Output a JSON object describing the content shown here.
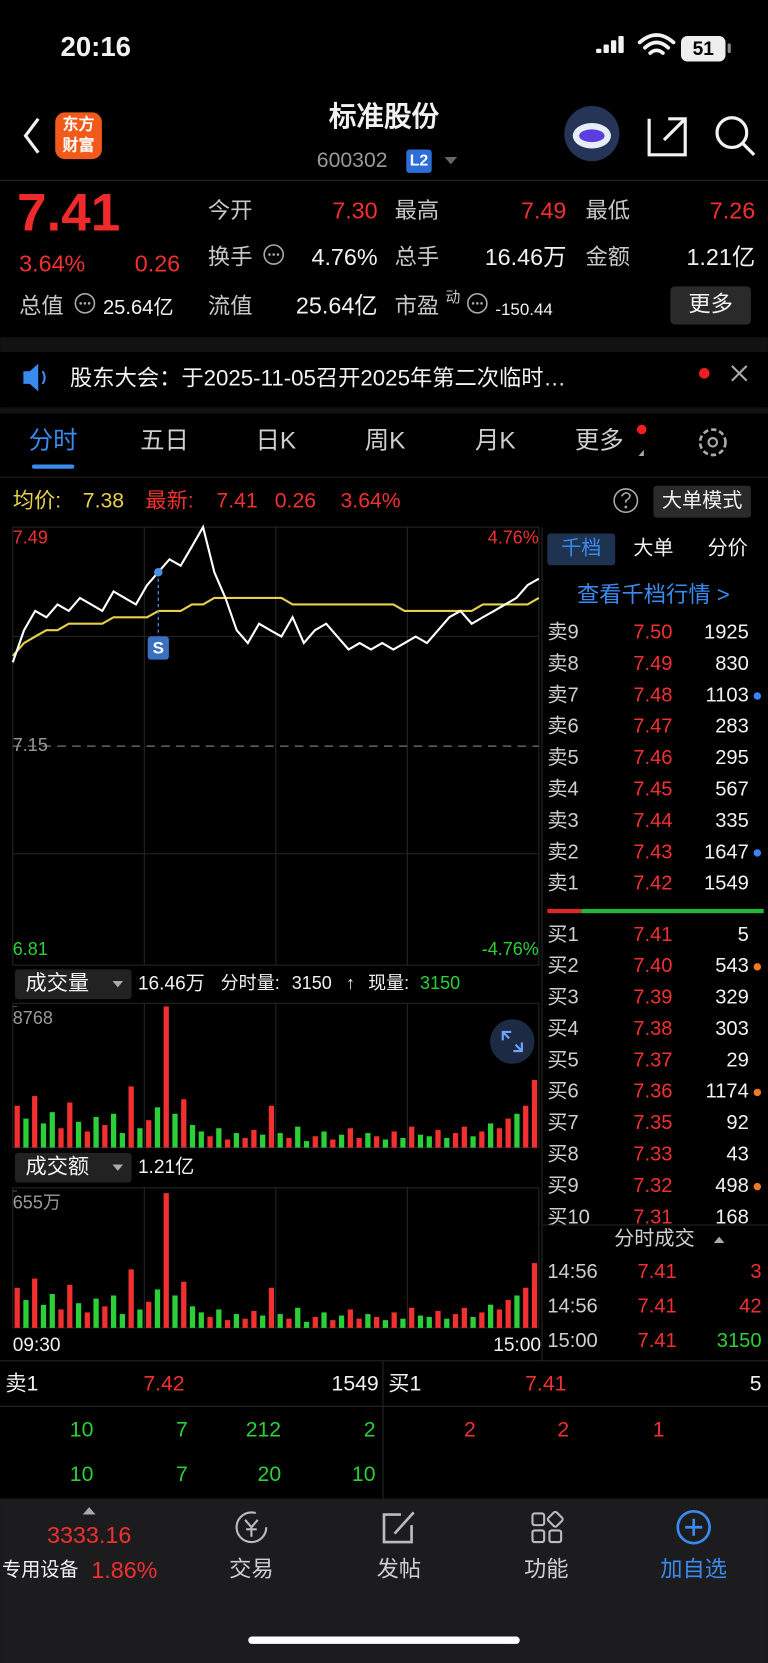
{
  "status": {
    "time": "20:16",
    "battery": "51"
  },
  "header": {
    "logo": [
      "东方",
      "财富"
    ],
    "title": "标准股份",
    "code": "600302",
    "badge": "L2"
  },
  "quote": {
    "price": "7.41",
    "pct": "3.64%",
    "change": "0.26",
    "fields": [
      {
        "label": "今开",
        "value": "7.30"
      },
      {
        "label": "最高",
        "value": "7.49"
      },
      {
        "label": "最低",
        "value": "7.26"
      },
      {
        "label": "换手",
        "value": "4.76%"
      },
      {
        "label": "总手",
        "value": "16.46万"
      },
      {
        "label": "金额",
        "value": "1.21亿"
      },
      {
        "label": "总值",
        "value": "25.64亿"
      },
      {
        "label": "流值",
        "value": "25.64亿"
      },
      {
        "label": "市盈",
        "sup": "动",
        "value": "-150.44"
      }
    ],
    "more": "更多"
  },
  "notice": "股东大会：于2025-11-05召开2025年第二次临时…",
  "tabs": [
    "分时",
    "五日",
    "日K",
    "周K",
    "月K",
    "更多"
  ],
  "info": {
    "avg_label": "均价:",
    "avg": "7.38",
    "latest_label": "最新:",
    "latest": "7.41",
    "change": "0.26",
    "pct": "3.64%",
    "mode": "大单模式"
  },
  "intraday": {
    "ylim": [
      6.81,
      7.49
    ],
    "yticks": [
      7.49,
      7.15,
      6.81
    ],
    "pct_top": "4.76%",
    "pct_bottom": "-4.76%",
    "price": [
      7.28,
      7.33,
      7.36,
      7.35,
      7.37,
      7.36,
      7.38,
      7.37,
      7.36,
      7.39,
      7.38,
      7.37,
      7.4,
      7.42,
      7.44,
      7.43,
      7.46,
      7.49,
      7.42,
      7.38,
      7.33,
      7.31,
      7.34,
      7.33,
      7.32,
      7.35,
      7.31,
      7.33,
      7.34,
      7.32,
      7.3,
      7.31,
      7.3,
      7.31,
      7.3,
      7.31,
      7.32,
      7.31,
      7.33,
      7.35,
      7.36,
      7.34,
      7.35,
      7.36,
      7.37,
      7.38,
      7.4,
      7.41
    ],
    "avg": [
      7.29,
      7.31,
      7.32,
      7.33,
      7.33,
      7.34,
      7.34,
      7.34,
      7.34,
      7.35,
      7.35,
      7.35,
      7.35,
      7.36,
      7.36,
      7.36,
      7.37,
      7.37,
      7.38,
      7.38,
      7.38,
      7.38,
      7.38,
      7.38,
      7.38,
      7.37,
      7.37,
      7.37,
      7.37,
      7.37,
      7.37,
      7.37,
      7.37,
      7.37,
      7.37,
      7.36,
      7.36,
      7.36,
      7.36,
      7.36,
      7.36,
      7.36,
      7.37,
      7.37,
      7.37,
      7.37,
      7.37,
      7.38
    ],
    "signal": "S",
    "start": "09:30",
    "end": "15:00",
    "bar_colors": [
      "#f23030",
      "#2bd039",
      "#f23030",
      "#2bd039",
      "#2bd039",
      "#f23030",
      "#f23030",
      "#2bd039",
      "#f23030",
      "#2bd039",
      "#f23030",
      "#2bd039",
      "#2bd039",
      "#f23030",
      "#2bd039",
      "#f23030",
      "#2bd039",
      "#f23030",
      "#2bd039",
      "#f23030",
      "#2bd039",
      "#2bd039",
      "#f23030",
      "#2bd039",
      "#f23030",
      "#2bd039",
      "#f23030",
      "#f23030",
      "#2bd039",
      "#f23030",
      "#2bd039",
      "#f23030",
      "#2bd039",
      "#2bd039",
      "#f23030",
      "#2bd039",
      "#f23030",
      "#2bd039",
      "#f23030",
      "#f23030",
      "#2bd039",
      "#f23030",
      "#2bd039",
      "#f23030",
      "#2bd039",
      "#f23030",
      "#2bd039",
      "#2bd039",
      "#f23030",
      "#2bd039",
      "#f23030",
      "#f23030",
      "#2bd039",
      "#f23030",
      "#2bd039",
      "#f23030",
      "#f23030",
      "#2bd039",
      "#f23030",
      "#f23030"
    ]
  },
  "volume": {
    "label": "成交量",
    "total": "16.46万",
    "seg_label": "分时量:",
    "seg": "3150",
    "arrow": "↑",
    "now_label": "现量:",
    "now": "3150",
    "ylim": [
      0,
      8768
    ],
    "yticks": [
      8768
    ],
    "values": [
      2600,
      1800,
      3200,
      1500,
      2200,
      1200,
      2800,
      1600,
      1000,
      1900,
      1400,
      2100,
      900,
      3800,
      1200,
      1700,
      2500,
      8768,
      2100,
      3000,
      1400,
      1000,
      700,
      1200,
      500,
      900,
      600,
      1100,
      800,
      2600,
      900,
      600,
      1300,
      400,
      700,
      1000,
      500,
      800,
      1200,
      600,
      900,
      700,
      500,
      1000,
      600,
      1300,
      800,
      700,
      1100,
      600,
      900,
      1300,
      700,
      1000,
      1500,
      1200,
      1800,
      2100,
      2600,
      4200
    ]
  },
  "amount": {
    "label": "成交额",
    "total": "1.21亿",
    "ylim": [
      0,
      655
    ],
    "yticks": [
      {
        "value": 655,
        "label": "655万"
      }
    ],
    "values": [
      192,
      133,
      236,
      110,
      162,
      88,
      206,
      118,
      74,
      140,
      103,
      155,
      66,
      280,
      88,
      125,
      184,
      645,
      155,
      221,
      103,
      74,
      52,
      88,
      37,
      66,
      44,
      81,
      59,
      192,
      66,
      44,
      96,
      29,
      52,
      74,
      37,
      59,
      88,
      44,
      66,
      52,
      37,
      74,
      44,
      96,
      59,
      52,
      81,
      44,
      66,
      96,
      52,
      74,
      111,
      88,
      133,
      155,
      192,
      310
    ]
  },
  "book": {
    "tabs": [
      "千档",
      "大单",
      "分价"
    ],
    "link": "查看千档行情 >",
    "asks": [
      {
        "label": "卖9",
        "price": "7.50",
        "vol": "1925"
      },
      {
        "label": "卖8",
        "price": "7.49",
        "vol": "830"
      },
      {
        "label": "卖7",
        "price": "7.48",
        "vol": "1103",
        "dot": "#3b82f6"
      },
      {
        "label": "卖6",
        "price": "7.47",
        "vol": "283"
      },
      {
        "label": "卖5",
        "price": "7.46",
        "vol": "295"
      },
      {
        "label": "卖4",
        "price": "7.45",
        "vol": "567"
      },
      {
        "label": "卖3",
        "price": "7.44",
        "vol": "335"
      },
      {
        "label": "卖2",
        "price": "7.43",
        "vol": "1647",
        "dot": "#3b82f6"
      },
      {
        "label": "卖1",
        "price": "7.42",
        "vol": "1549"
      }
    ],
    "bids": [
      {
        "label": "买1",
        "price": "7.41",
        "vol": "5"
      },
      {
        "label": "买2",
        "price": "7.40",
        "vol": "543",
        "dot": "#f07a22"
      },
      {
        "label": "买3",
        "price": "7.39",
        "vol": "329"
      },
      {
        "label": "买4",
        "price": "7.38",
        "vol": "303"
      },
      {
        "label": "买5",
        "price": "7.37",
        "vol": "29"
      },
      {
        "label": "买6",
        "price": "7.36",
        "vol": "1174",
        "dot": "#f07a22"
      },
      {
        "label": "买7",
        "price": "7.35",
        "vol": "92"
      },
      {
        "label": "买8",
        "price": "7.33",
        "vol": "43"
      },
      {
        "label": "买9",
        "price": "7.32",
        "vol": "498",
        "dot": "#f07a22"
      },
      {
        "label": "买10",
        "price": "7.31",
        "vol": "168"
      }
    ]
  },
  "trades": {
    "title": "分时成交",
    "rows": [
      [
        "14:56",
        "7.41",
        "3"
      ],
      [
        "14:56",
        "7.41",
        "42"
      ],
      [
        "15:00",
        "7.41",
        "3150"
      ]
    ]
  },
  "level1": {
    "sell": [
      "卖1",
      "7.42",
      "1549"
    ],
    "buy": [
      "买1",
      "7.41",
      "5"
    ],
    "sell_rows": [
      [
        "10",
        "7",
        "212",
        "2"
      ],
      [
        "10",
        "7",
        "20",
        "10"
      ]
    ],
    "buy_rows": [
      [
        "2",
        "2",
        "1"
      ]
    ]
  },
  "nav": {
    "index": "3333.16",
    "sector": "专用设备",
    "sector_pct": "1.86%",
    "items": [
      "交易",
      "发帖",
      "功能",
      "加自选"
    ]
  }
}
